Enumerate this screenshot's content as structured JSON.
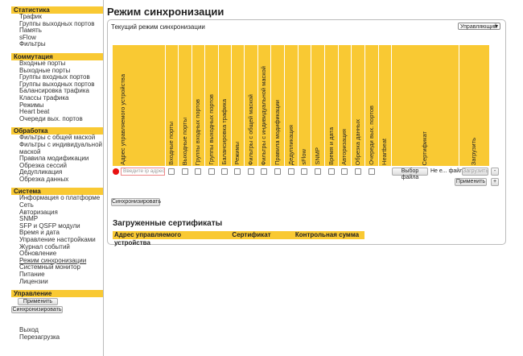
{
  "sidebar": {
    "sections": [
      {
        "title": "Статистика",
        "items": [
          "Трафик",
          "Группы выходных портов",
          "Память",
          "sFlow",
          "Фильтры"
        ]
      },
      {
        "title": "Коммутация",
        "items": [
          "Входные порты",
          "Выходные порты",
          "Группы входных портов",
          "Группы выходных портов",
          "Балансировка трафика",
          "Классы трафика",
          "Режимы",
          "Heart beat",
          "Очереди вых. портов"
        ]
      },
      {
        "title": "Обработка",
        "items": [
          "Фильтры с общей маской",
          "Фильтры с индивидуальной маской",
          "Правила модификации",
          "Обрезка сессий",
          "Дедупликация",
          "Обрезка данных"
        ]
      },
      {
        "title": "Система",
        "items": [
          "Информация о платформе",
          "Сеть",
          "Авторизация",
          "SNMP",
          "SFP и QSFP модули",
          "Время и дата",
          "Управление настройками",
          "Журнал событий",
          "Обновление",
          "Режим синхронизации",
          "Системный монитор",
          "Питание",
          "Лицензии"
        ]
      },
      {
        "title": "Управление",
        "buttons": [
          "Применить",
          "Синхронизировать"
        ]
      }
    ],
    "footer": [
      "Выход",
      "Перезагрузка"
    ]
  },
  "main": {
    "title": "Режим синхронизации",
    "panel": {
      "mode_label": "Текущий режим синхронизации",
      "mode_value": "Управляющий",
      "columns": [
        "Адрес управляемого устройства",
        "Входные порты",
        "Выходные порты",
        "Группы входных портов",
        "Группы выходных портов",
        "Балансировка трафика",
        "Режимы",
        "Фильтры с общей маской",
        "Фильтры с индивидуальной маской",
        "Правила модификации",
        "Дедупликация",
        "sFlow",
        "SNMP",
        "Время и дата",
        "Авторизация",
        "Обрезка данных",
        "Очереди вых. портов",
        "Heartbeat",
        "Сертификат",
        "Загрузить"
      ],
      "row": {
        "placeholder": "Введите ip адрес",
        "choose_file": "Выбор файла",
        "no_file": "Не е... файл",
        "upload": "Загрузить",
        "minus": "-",
        "apply": "Применить",
        "plus": "+"
      },
      "sync_button": "Синхронизировать",
      "certs_title": "Загруженные сертификаты",
      "cert_columns": [
        "Адрес управляемого устройства",
        "Сертификат",
        "Контрольная сумма"
      ]
    }
  }
}
